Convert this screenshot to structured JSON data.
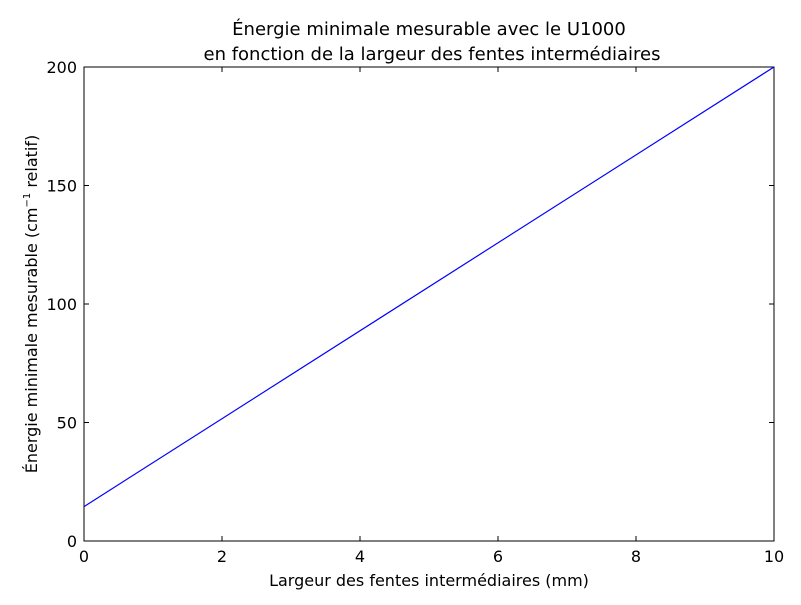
{
  "chart_data": {
    "type": "line",
    "title_line1": "Énergie minimale mesurable avec le U1000",
    "title_line2": "en fonction de la largeur des fentes intermédiaires",
    "xlabel": "Largeur des fentes intermédiaires (mm)",
    "ylabel_pre": "Énergie minimale mesurable (cm",
    "ylabel_sup": "−1",
    "ylabel_post": " relatif)",
    "xlim": [
      0,
      10
    ],
    "ylim": [
      0,
      200
    ],
    "x_ticks": [
      "0",
      "2",
      "4",
      "6",
      "8",
      "10"
    ],
    "y_ticks": [
      "0",
      "50",
      "100",
      "150",
      "200"
    ],
    "grid": false,
    "series": [
      {
        "x": [
          0,
          10
        ],
        "y": [
          14.5,
          200
        ],
        "color": "#0000ff"
      }
    ]
  }
}
